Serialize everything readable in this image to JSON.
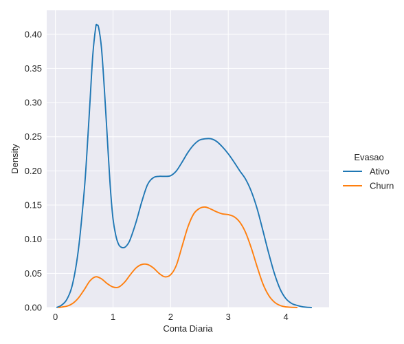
{
  "chart_data": {
    "type": "line",
    "subtype": "kde",
    "title": "",
    "xlabel": "Conta Diaria",
    "ylabel": "Density",
    "xlim": [
      -0.15,
      4.75
    ],
    "ylim": [
      0,
      0.435
    ],
    "xticks": [
      0,
      1,
      2,
      3,
      4
    ],
    "yticks": [
      0.0,
      0.05,
      0.1,
      0.15,
      0.2,
      0.25,
      0.3,
      0.35,
      0.4
    ],
    "xtick_labels": [
      "0",
      "1",
      "2",
      "3",
      "4"
    ],
    "ytick_labels": [
      "0.00",
      "0.05",
      "0.10",
      "0.15",
      "0.20",
      "0.25",
      "0.30",
      "0.35",
      "0.40"
    ],
    "grid": true,
    "background": "#eaeaf2",
    "legend": {
      "title": "Evasao",
      "placement": "right",
      "entries": [
        "Ativo",
        "Churn"
      ]
    },
    "series": [
      {
        "name": "Ativo",
        "color": "#1f77b4",
        "points": [
          [
            0.02,
            0.0
          ],
          [
            0.1,
            0.003
          ],
          [
            0.2,
            0.012
          ],
          [
            0.3,
            0.035
          ],
          [
            0.4,
            0.085
          ],
          [
            0.5,
            0.17
          ],
          [
            0.55,
            0.23
          ],
          [
            0.6,
            0.3
          ],
          [
            0.65,
            0.37
          ],
          [
            0.7,
            0.41
          ],
          [
            0.72,
            0.413
          ],
          [
            0.75,
            0.41
          ],
          [
            0.8,
            0.38
          ],
          [
            0.85,
            0.32
          ],
          [
            0.9,
            0.25
          ],
          [
            0.95,
            0.18
          ],
          [
            1.0,
            0.13
          ],
          [
            1.05,
            0.105
          ],
          [
            1.1,
            0.092
          ],
          [
            1.15,
            0.088
          ],
          [
            1.2,
            0.088
          ],
          [
            1.25,
            0.092
          ],
          [
            1.3,
            0.1
          ],
          [
            1.4,
            0.125
          ],
          [
            1.5,
            0.155
          ],
          [
            1.6,
            0.18
          ],
          [
            1.7,
            0.19
          ],
          [
            1.8,
            0.192
          ],
          [
            1.9,
            0.192
          ],
          [
            2.0,
            0.193
          ],
          [
            2.1,
            0.2
          ],
          [
            2.2,
            0.213
          ],
          [
            2.3,
            0.227
          ],
          [
            2.4,
            0.238
          ],
          [
            2.5,
            0.245
          ],
          [
            2.6,
            0.247
          ],
          [
            2.7,
            0.247
          ],
          [
            2.8,
            0.243
          ],
          [
            2.9,
            0.235
          ],
          [
            3.0,
            0.225
          ],
          [
            3.1,
            0.213
          ],
          [
            3.2,
            0.2
          ],
          [
            3.3,
            0.188
          ],
          [
            3.4,
            0.17
          ],
          [
            3.5,
            0.145
          ],
          [
            3.6,
            0.113
          ],
          [
            3.7,
            0.08
          ],
          [
            3.8,
            0.05
          ],
          [
            3.9,
            0.027
          ],
          [
            4.0,
            0.013
          ],
          [
            4.1,
            0.006
          ],
          [
            4.2,
            0.003
          ],
          [
            4.3,
            0.001
          ],
          [
            4.45,
            0.0
          ]
        ]
      },
      {
        "name": "Churn",
        "color": "#ff7f0e",
        "points": [
          [
            0.05,
            0.0
          ],
          [
            0.2,
            0.002
          ],
          [
            0.3,
            0.006
          ],
          [
            0.4,
            0.014
          ],
          [
            0.5,
            0.026
          ],
          [
            0.6,
            0.039
          ],
          [
            0.7,
            0.045
          ],
          [
            0.8,
            0.042
          ],
          [
            0.9,
            0.035
          ],
          [
            1.0,
            0.03
          ],
          [
            1.1,
            0.03
          ],
          [
            1.2,
            0.037
          ],
          [
            1.3,
            0.048
          ],
          [
            1.4,
            0.058
          ],
          [
            1.5,
            0.063
          ],
          [
            1.6,
            0.063
          ],
          [
            1.7,
            0.058
          ],
          [
            1.8,
            0.05
          ],
          [
            1.9,
            0.045
          ],
          [
            2.0,
            0.048
          ],
          [
            2.1,
            0.062
          ],
          [
            2.2,
            0.09
          ],
          [
            2.3,
            0.118
          ],
          [
            2.4,
            0.137
          ],
          [
            2.5,
            0.145
          ],
          [
            2.6,
            0.147
          ],
          [
            2.7,
            0.144
          ],
          [
            2.8,
            0.14
          ],
          [
            2.9,
            0.137
          ],
          [
            3.0,
            0.136
          ],
          [
            3.1,
            0.133
          ],
          [
            3.2,
            0.125
          ],
          [
            3.3,
            0.11
          ],
          [
            3.4,
            0.087
          ],
          [
            3.5,
            0.06
          ],
          [
            3.6,
            0.035
          ],
          [
            3.7,
            0.018
          ],
          [
            3.8,
            0.008
          ],
          [
            3.9,
            0.003
          ],
          [
            4.0,
            0.001
          ],
          [
            4.2,
            0.0
          ]
        ]
      }
    ]
  }
}
